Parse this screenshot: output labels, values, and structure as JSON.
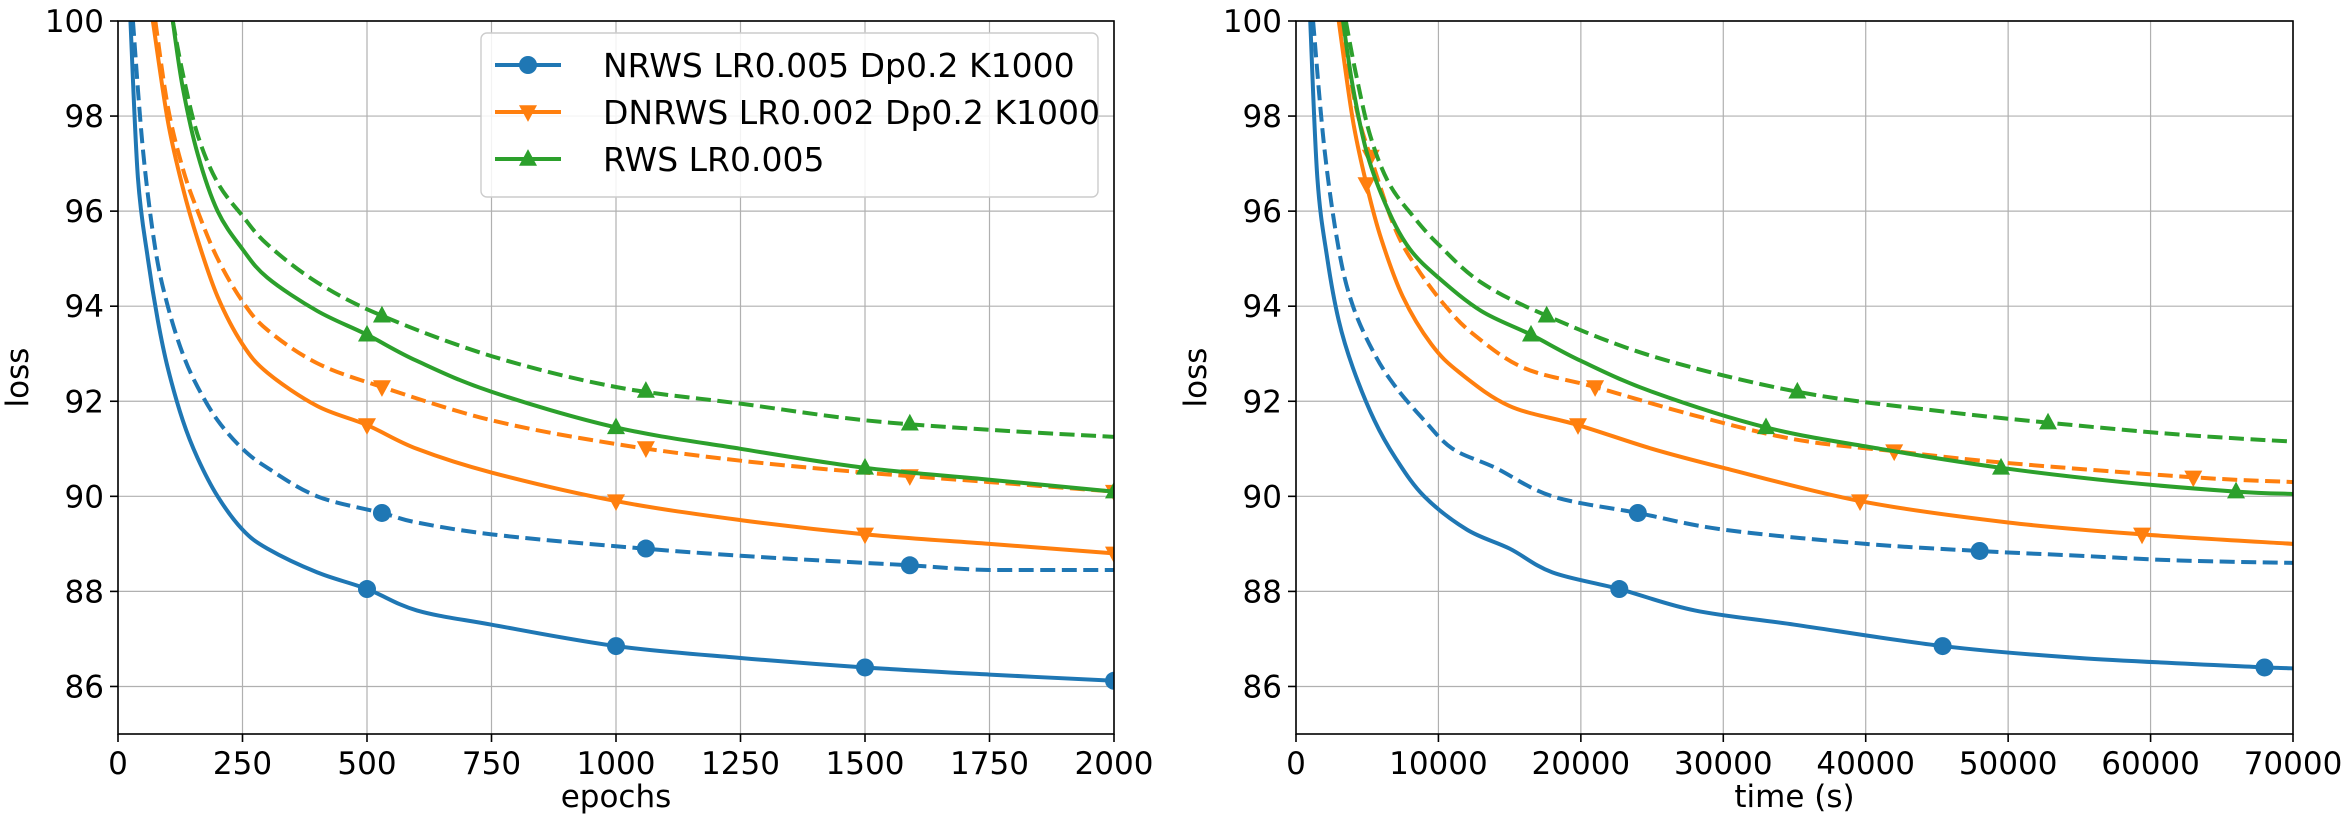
{
  "colors": {
    "NRWS": "#1f77b4",
    "DNRWS": "#ff7f0e",
    "RWS": "#2ca02c"
  },
  "legend": [
    {
      "key": "NRWS",
      "label": "NRWS LR0.005 Dp0.2 K1000",
      "marker": "circle"
    },
    {
      "key": "DNRWS",
      "label": "DNRWS LR0.002 Dp0.2 K1000",
      "marker": "triangle-down"
    },
    {
      "key": "RWS",
      "label": "RWS LR0.005",
      "marker": "triangle-up"
    }
  ],
  "chart_data": [
    {
      "type": "line",
      "id": "epochs",
      "xlabel": "epochs",
      "ylabel": "loss",
      "xlim": [
        0,
        2000
      ],
      "ylim": [
        85,
        100
      ],
      "xticks": [
        0,
        250,
        500,
        750,
        1000,
        1250,
        1500,
        1750,
        2000
      ],
      "yticks": [
        86,
        88,
        90,
        92,
        94,
        96,
        98,
        100
      ],
      "grid": true,
      "legend_location": "top-right",
      "series": [
        {
          "key": "NRWS",
          "style": "solid",
          "marker": "circle",
          "x": [
            25,
            40,
            60,
            80,
            100,
            130,
            160,
            200,
            250,
            300,
            400,
            500,
            600,
            750,
            1000,
            1250,
            1500,
            1750,
            2000
          ],
          "y": [
            100,
            96.7,
            95.0,
            93.7,
            92.7,
            91.6,
            90.8,
            90.0,
            89.3,
            88.9,
            88.4,
            88.05,
            87.6,
            87.3,
            86.85,
            86.6,
            86.4,
            86.25,
            86.12
          ],
          "marker_x": [
            500,
            1000,
            1500,
            2000
          ]
        },
        {
          "key": "NRWS",
          "style": "dashed",
          "marker": "circle",
          "x": [
            30,
            50,
            75,
            100,
            130,
            160,
            200,
            250,
            300,
            400,
            530,
            600,
            750,
            1000,
            1250,
            1500,
            1590,
            1750,
            2000
          ],
          "y": [
            100,
            97.3,
            95.2,
            94.0,
            93.0,
            92.3,
            91.6,
            91.0,
            90.6,
            90.0,
            89.65,
            89.45,
            89.2,
            88.95,
            88.75,
            88.6,
            88.55,
            88.45,
            88.45
          ],
          "marker_x": [
            530,
            1060,
            1590
          ]
        },
        {
          "key": "DNRWS",
          "style": "solid",
          "marker": "triangle-down",
          "x": [
            70,
            100,
            130,
            160,
            200,
            250,
            300,
            400,
            500,
            600,
            750,
            1000,
            1250,
            1500,
            1750,
            2000
          ],
          "y": [
            100,
            97.9,
            96.5,
            95.4,
            94.2,
            93.2,
            92.6,
            91.9,
            91.5,
            91.0,
            90.5,
            89.9,
            89.5,
            89.2,
            89.0,
            88.8
          ],
          "marker_x": [
            500,
            1000,
            1500,
            2000
          ]
        },
        {
          "key": "DNRWS",
          "style": "dashed",
          "marker": "triangle-down",
          "x": [
            75,
            100,
            130,
            160,
            200,
            250,
            300,
            400,
            530,
            750,
            1000,
            1250,
            1500,
            1750,
            2000
          ],
          "y": [
            100,
            98.2,
            96.9,
            96.0,
            95.0,
            94.1,
            93.5,
            92.8,
            92.3,
            91.6,
            91.1,
            90.75,
            90.5,
            90.3,
            90.1
          ],
          "marker_x": [
            530,
            1060,
            1590,
            2000
          ]
        },
        {
          "key": "RWS",
          "style": "solid",
          "marker": "triangle-up",
          "x": [
            110,
            130,
            160,
            200,
            250,
            300,
            400,
            500,
            600,
            750,
            1000,
            1250,
            1500,
            1750,
            2000
          ],
          "y": [
            100,
            98.6,
            97.2,
            96.0,
            95.2,
            94.6,
            93.9,
            93.4,
            92.85,
            92.2,
            91.45,
            91.0,
            90.6,
            90.35,
            90.1
          ],
          "marker_x": [
            500,
            1000,
            1500,
            2000
          ]
        },
        {
          "key": "RWS",
          "style": "dashed",
          "marker": "triangle-up",
          "x": [
            110,
            130,
            160,
            200,
            250,
            300,
            400,
            530,
            750,
            1000,
            1250,
            1500,
            1750,
            2000
          ],
          "y": [
            100,
            98.9,
            97.6,
            96.6,
            95.9,
            95.3,
            94.5,
            93.8,
            92.95,
            92.3,
            91.95,
            91.6,
            91.4,
            91.25
          ],
          "marker_x": [
            530,
            1060,
            1590
          ]
        }
      ]
    },
    {
      "type": "line",
      "id": "time",
      "xlabel": "time (s)",
      "ylabel": "loss",
      "xlim": [
        0,
        70000
      ],
      "ylim": [
        85,
        100
      ],
      "xticks": [
        0,
        10000,
        20000,
        30000,
        40000,
        50000,
        60000,
        70000
      ],
      "yticks": [
        86,
        88,
        90,
        92,
        94,
        96,
        98,
        100
      ],
      "grid": true,
      "series": [
        {
          "key": "NRWS",
          "style": "solid",
          "marker": "circle",
          "x": [
            1000,
            1500,
            2200,
            3000,
            4000,
            5500,
            7000,
            9000,
            12000,
            15000,
            18000,
            22700,
            28000,
            35000,
            45400,
            55000,
            68000,
            70000
          ],
          "y": [
            100,
            96.7,
            95.0,
            93.7,
            92.7,
            91.6,
            90.8,
            90.0,
            89.3,
            88.9,
            88.4,
            88.05,
            87.6,
            87.3,
            86.85,
            86.6,
            86.4,
            86.38
          ],
          "marker_x": [
            22700,
            45400,
            68000
          ]
        },
        {
          "key": "NRWS",
          "style": "dashed",
          "marker": "circle",
          "x": [
            1200,
            2000,
            3000,
            4000,
            5500,
            7000,
            9000,
            11000,
            14000,
            18000,
            24000,
            30000,
            40000,
            48000,
            55000,
            62000,
            70000
          ],
          "y": [
            100,
            97.3,
            95.2,
            94.0,
            93.0,
            92.3,
            91.6,
            91.0,
            90.6,
            90.0,
            89.65,
            89.3,
            89.0,
            88.85,
            88.75,
            88.65,
            88.6
          ],
          "marker_x": [
            24000,
            48000
          ]
        },
        {
          "key": "DNRWS",
          "style": "solid",
          "marker": "triangle-down",
          "x": [
            3000,
            4000,
            5000,
            6000,
            7500,
            9500,
            11500,
            15000,
            19800,
            25000,
            30000,
            39600,
            50000,
            59400,
            70000
          ],
          "y": [
            100,
            97.9,
            96.5,
            95.4,
            94.2,
            93.2,
            92.6,
            91.9,
            91.5,
            91.0,
            90.6,
            89.9,
            89.45,
            89.2,
            89.0
          ],
          "marker_x": [
            4950,
            19800,
            39600,
            59400
          ]
        },
        {
          "key": "DNRWS",
          "style": "dashed",
          "marker": "triangle-down",
          "x": [
            3200,
            4200,
            5500,
            7000,
            8500,
            10500,
            12500,
            16000,
            21000,
            28000,
            35000,
            42000,
            50000,
            63000,
            70000
          ],
          "y": [
            100,
            98.2,
            96.9,
            95.6,
            94.8,
            94.0,
            93.4,
            92.7,
            92.3,
            91.7,
            91.2,
            90.95,
            90.7,
            90.4,
            90.3
          ],
          "marker_x": [
            5250,
            21000,
            42000,
            63000
          ]
        },
        {
          "key": "RWS",
          "style": "solid",
          "marker": "triangle-up",
          "x": [
            3300,
            4000,
            5000,
            6500,
            8000,
            10000,
            13000,
            16500,
            20000,
            25000,
            33000,
            41000,
            49500,
            58000,
            66000,
            70000
          ],
          "y": [
            100,
            98.6,
            97.2,
            96.0,
            95.2,
            94.6,
            93.9,
            93.4,
            92.85,
            92.2,
            91.45,
            91.0,
            90.6,
            90.3,
            90.1,
            90.05
          ],
          "marker_x": [
            16500,
            33000,
            49500,
            66000
          ]
        },
        {
          "key": "RWS",
          "style": "dashed",
          "marker": "triangle-up",
          "x": [
            3500,
            4200,
            5200,
            6500,
            8200,
            10000,
            13000,
            17600,
            25000,
            35200,
            45000,
            52800,
            62000,
            70000
          ],
          "y": [
            100,
            98.9,
            97.6,
            96.6,
            95.9,
            95.3,
            94.5,
            93.8,
            92.95,
            92.2,
            91.8,
            91.55,
            91.3,
            91.15
          ],
          "marker_x": [
            17600,
            35200,
            52800
          ]
        }
      ]
    }
  ]
}
